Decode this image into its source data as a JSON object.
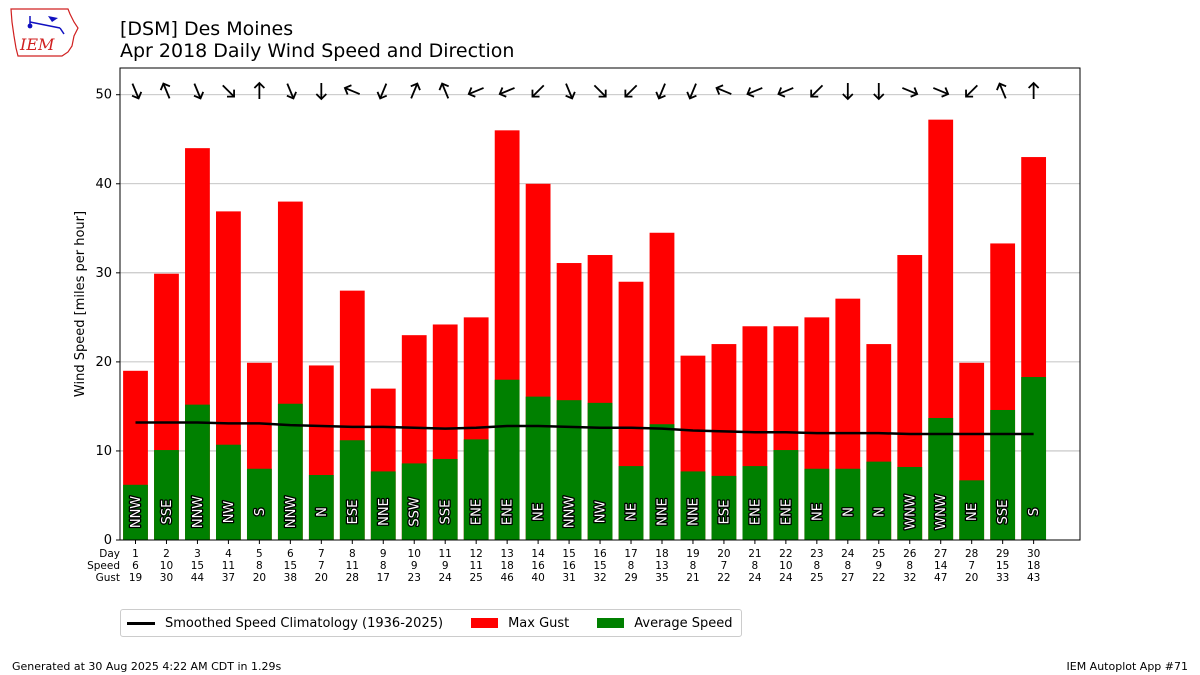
{
  "header": {
    "title_line1": "[DSM] Des Moines",
    "title_line2": "Apr 2018 Daily Wind Speed and Direction",
    "logo_text": "IEM"
  },
  "colors": {
    "gust": "#ff0000",
    "avg": "#008000",
    "clim": "#000000",
    "logo": "#d02020",
    "logo_blue": "#1010c0"
  },
  "legend": {
    "clim_label": "Smoothed Speed Climatology (1936-2025)",
    "gust_label": "Max Gust",
    "avg_label": "Average Speed"
  },
  "table_labels": {
    "day": "Day",
    "speed": "Speed",
    "gust": "Gust"
  },
  "footer": {
    "generated": "Generated at 30 Aug 2025 4:22 AM CDT in 1.29s",
    "app": "IEM Autoplot App #71"
  },
  "chart_data": {
    "type": "bar",
    "ylabel": "Wind Speed [miles per hour]",
    "ylim": [
      0,
      53
    ],
    "yticks": [
      0,
      10,
      20,
      30,
      40,
      50
    ],
    "grid": true,
    "legend_position": "below",
    "days": [
      "1",
      "2",
      "3",
      "4",
      "5",
      "6",
      "7",
      "8",
      "9",
      "10",
      "11",
      "12",
      "13",
      "14",
      "15",
      "16",
      "17",
      "18",
      "19",
      "20",
      "21",
      "22",
      "23",
      "24",
      "25",
      "26",
      "27",
      "28",
      "29",
      "30"
    ],
    "speed_labels": [
      "6",
      "10",
      "15",
      "11",
      "8",
      "15",
      "7",
      "11",
      "8",
      "9",
      "9",
      "11",
      "18",
      "16",
      "16",
      "15",
      "8",
      "13",
      "8",
      "7",
      "8",
      "10",
      "8",
      "8",
      "9",
      "8",
      "14",
      "7",
      "15",
      "18"
    ],
    "gust_labels": [
      "19",
      "30",
      "44",
      "37",
      "20",
      "38",
      "20",
      "28",
      "17",
      "23",
      "24",
      "25",
      "46",
      "40",
      "31",
      "32",
      "29",
      "35",
      "21",
      "22",
      "24",
      "24",
      "25",
      "27",
      "22",
      "32",
      "47",
      "20",
      "33",
      "43"
    ],
    "series": [
      {
        "name": "Max Gust",
        "values": [
          19,
          29.9,
          44,
          36.9,
          19.9,
          38,
          19.6,
          28,
          17,
          23,
          24.2,
          25,
          46,
          40,
          31.1,
          32,
          29,
          34.5,
          20.7,
          22,
          24,
          24,
          25,
          27.1,
          22,
          32,
          47.2,
          19.9,
          33.3,
          43
        ]
      },
      {
        "name": "Average Speed",
        "values": [
          6.2,
          10.1,
          15.2,
          10.7,
          8.0,
          15.3,
          7.3,
          11.2,
          7.7,
          8.6,
          9.1,
          11.3,
          18.0,
          16.1,
          15.7,
          15.4,
          8.3,
          13.0,
          7.7,
          7.2,
          8.3,
          10.1,
          8.0,
          8.0,
          8.8,
          8.2,
          13.7,
          6.7,
          14.6,
          18.3
        ]
      },
      {
        "name": "Smoothed Speed Climatology (1936-2025)",
        "values": [
          13.2,
          13.2,
          13.2,
          13.1,
          13.1,
          12.9,
          12.8,
          12.7,
          12.7,
          12.6,
          12.5,
          12.6,
          12.8,
          12.8,
          12.7,
          12.6,
          12.6,
          12.5,
          12.3,
          12.2,
          12.1,
          12.1,
          12.0,
          12.0,
          12.0,
          11.9,
          11.9,
          11.9,
          11.9,
          11.9
        ]
      }
    ],
    "directions": [
      "NNW",
      "SSE",
      "NNW",
      "NW",
      "S",
      "NNW",
      "N",
      "ESE",
      "NNE",
      "SSW",
      "SSE",
      "ENE",
      "ENE",
      "NE",
      "NNW",
      "NW",
      "NE",
      "NNE",
      "NNE",
      "ESE",
      "ENE",
      "ENE",
      "NE",
      "N",
      "N",
      "WNW",
      "WNW",
      "NE",
      "SSE",
      "S"
    ]
  }
}
